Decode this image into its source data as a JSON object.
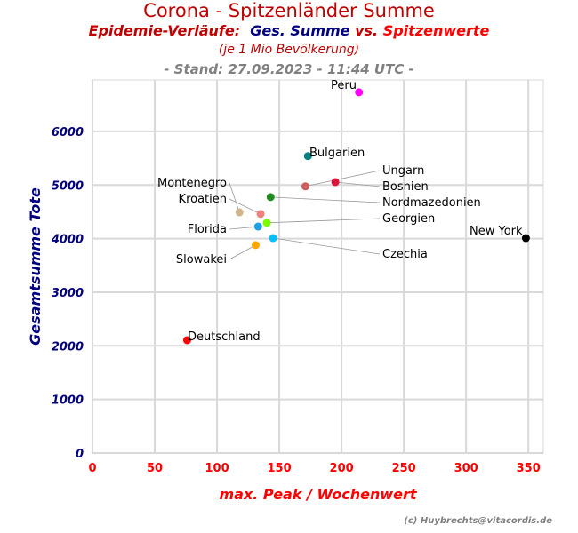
{
  "title": "Corona - Spitzenländer Summe",
  "subtitle": {
    "part1": "Epidemie-Verläufe:",
    "part2": "Ges. Summe",
    "part3": "vs.",
    "part4": "Spitzenwerte"
  },
  "subtitle2": "(je 1 Mio Bevölkerung)",
  "stand": "- Stand: 27.09.2023 - 11:44 UTC -",
  "credit": "(c) Huybrechts@vitacordis.de",
  "colors": {
    "title": "#c00000",
    "blue": "#000080",
    "red": "#ff0000",
    "grey": "#808080",
    "grid": "#d9d9d9"
  },
  "chart_data": {
    "type": "scatter",
    "xlabel": "max. Peak / Wochenwert",
    "ylabel": "Gesamtsumme Tote",
    "xlim": [
      0,
      362
    ],
    "ylim": [
      0,
      6960
    ],
    "xticks": [
      "0",
      "50",
      "100",
      "150",
      "200",
      "250",
      "300",
      "350"
    ],
    "yticks": [
      "0",
      "1000",
      "2000",
      "3000",
      "4000",
      "5000",
      "6000"
    ],
    "grid": true,
    "points": [
      {
        "name": "Peru",
        "x": 214,
        "y": 6730,
        "color": "#ff00ff"
      },
      {
        "name": "Bulgarien",
        "x": 173,
        "y": 5540,
        "color": "#008080"
      },
      {
        "name": "Bosnien",
        "x": 195,
        "y": 5055,
        "color": "#dc143c"
      },
      {
        "name": "Ungarn",
        "x": 171,
        "y": 4975,
        "color": "#cd5c5c"
      },
      {
        "name": "Nordmazedonien",
        "x": 143,
        "y": 4775,
        "color": "#228b22"
      },
      {
        "name": "Montenegro",
        "x": 118,
        "y": 4490,
        "color": "#d2b48c"
      },
      {
        "name": "Kroatien",
        "x": 135,
        "y": 4460,
        "color": "#f08080"
      },
      {
        "name": "Georgien",
        "x": 140,
        "y": 4295,
        "color": "#7cfc00"
      },
      {
        "name": "Florida",
        "x": 133,
        "y": 4225,
        "color": "#1e9fe6"
      },
      {
        "name": "Czechia",
        "x": 145,
        "y": 4010,
        "color": "#00bfff"
      },
      {
        "name": "Slowakei",
        "x": 131,
        "y": 3880,
        "color": "#ffa500"
      },
      {
        "name": "New York",
        "x": 348,
        "y": 4010,
        "color": "#000000"
      },
      {
        "name": "Deutschland",
        "x": 76,
        "y": 2105,
        "color": "#ff0000"
      }
    ]
  }
}
